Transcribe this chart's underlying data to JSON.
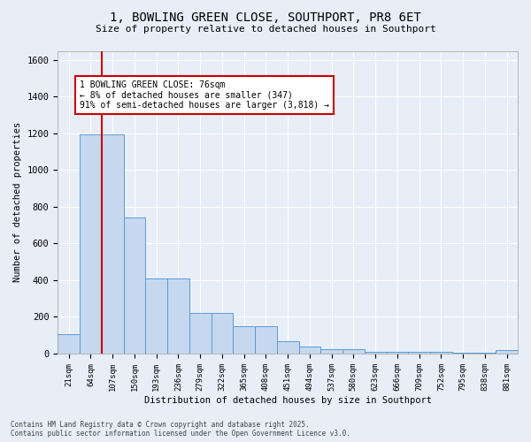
{
  "title_line1": "1, BOWLING GREEN CLOSE, SOUTHPORT, PR8 6ET",
  "title_line2": "Size of property relative to detached houses in Southport",
  "xlabel": "Distribution of detached houses by size in Southport",
  "ylabel": "Number of detached properties",
  "categories": [
    "21sqm",
    "64sqm",
    "107sqm",
    "150sqm",
    "193sqm",
    "236sqm",
    "279sqm",
    "322sqm",
    "365sqm",
    "408sqm",
    "451sqm",
    "494sqm",
    "537sqm",
    "580sqm",
    "623sqm",
    "666sqm",
    "709sqm",
    "752sqm",
    "795sqm",
    "838sqm",
    "881sqm"
  ],
  "values": [
    105,
    1195,
    1195,
    740,
    410,
    410,
    220,
    220,
    150,
    150,
    65,
    40,
    25,
    25,
    10,
    10,
    10,
    10,
    5,
    5,
    20
  ],
  "bar_color": "#c5d8ef",
  "bar_edge_color": "#5b9bd5",
  "background_color": "#e8eef8",
  "grid_color": "#ffffff",
  "vline_x_pos": 1.5,
  "vline_color": "#cc0000",
  "annotation_text": "1 BOWLING GREEN CLOSE: 76sqm\n← 8% of detached houses are smaller (347)\n91% of semi-detached houses are larger (3,818) →",
  "annotation_box_color": "#ffffff",
  "annotation_box_edge_color": "#cc0000",
  "ylim": [
    0,
    1650
  ],
  "yticks": [
    0,
    200,
    400,
    600,
    800,
    1000,
    1200,
    1400,
    1600
  ],
  "footer_line1": "Contains HM Land Registry data © Crown copyright and database right 2025.",
  "footer_line2": "Contains public sector information licensed under the Open Government Licence v3.0."
}
